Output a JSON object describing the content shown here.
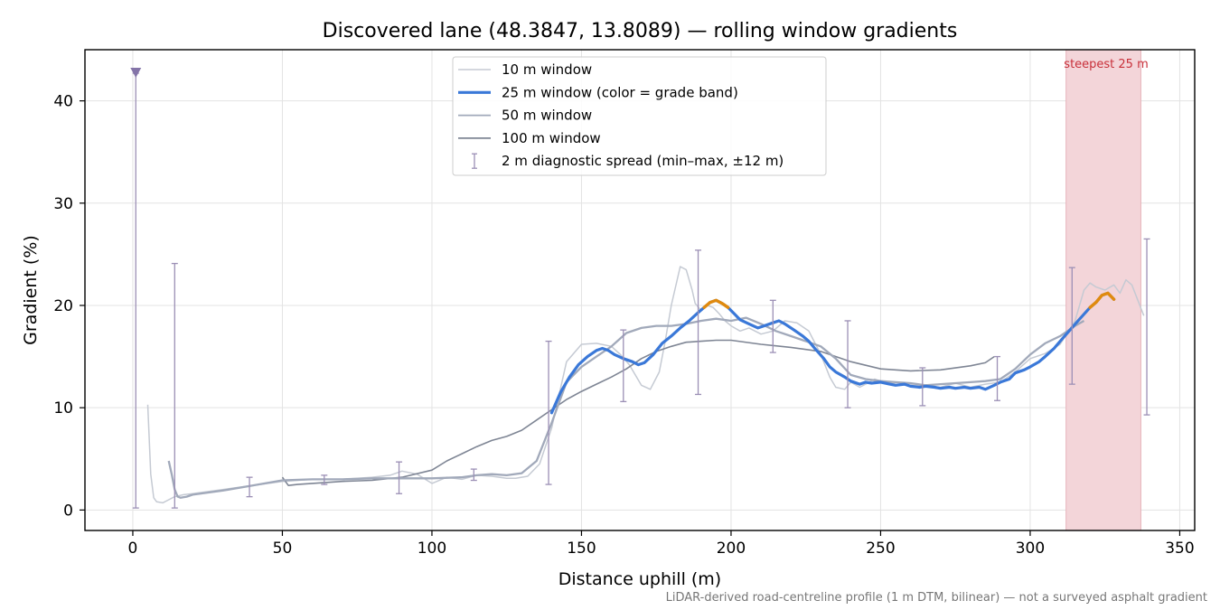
{
  "chart_data": {
    "type": "line",
    "title": "Discovered lane (48.3847, 13.8089) — rolling window gradients",
    "xlabel": "Distance uphill (m)",
    "ylabel": "Gradient (%)",
    "xlim": [
      -16,
      355
    ],
    "ylim": [
      -2,
      45
    ],
    "xticks": [
      0,
      50,
      100,
      150,
      200,
      250,
      300,
      350
    ],
    "yticks": [
      0,
      10,
      20,
      30,
      40
    ],
    "grid": true,
    "legend_placement": "upper center",
    "footnote": "LiDAR-derived road-centreline profile (1 m DTM, bilinear) — not a surveyed asphalt gradient",
    "colors": {
      "w10": "#c5cad3",
      "w25": "#3a78d8",
      "w25_steep": "#e08a0e",
      "w50": "#a1a9ba",
      "w100": "#7e8594",
      "spread": "#9b8fb5",
      "marker": "#8474a8",
      "highlight_fill": "#f3d5d9",
      "highlight_edge": "#e7b3ba"
    },
    "highlight": {
      "label": "steepest 25 m",
      "x_start": 312,
      "x_end": 337
    },
    "marker": {
      "x": 1,
      "y": 42.7
    },
    "series": [
      {
        "name": "10 m window",
        "x": [
          5,
          6,
          7,
          8,
          10,
          12,
          14,
          17,
          20,
          25,
          30,
          40,
          50,
          60,
          70,
          80,
          86,
          90,
          95,
          100,
          105,
          110,
          115,
          120,
          125,
          128,
          132,
          136,
          140,
          145,
          150,
          155,
          160,
          163,
          166,
          170,
          173,
          176,
          178,
          180,
          183,
          185,
          187,
          188,
          190,
          192,
          194,
          196,
          198,
          200,
          203,
          206,
          210,
          214,
          218,
          222,
          226,
          230,
          233,
          235,
          238,
          240,
          243,
          245,
          248,
          250,
          255,
          260,
          265,
          270,
          275,
          280,
          285,
          290,
          295,
          300,
          305,
          310,
          315,
          318,
          320,
          322,
          325,
          328,
          330,
          332,
          334,
          336,
          338
        ],
        "y": [
          10.3,
          3.5,
          1.2,
          0.8,
          0.7,
          1.0,
          1.3,
          1.5,
          1.6,
          1.8,
          2.0,
          2.4,
          2.8,
          3.0,
          3.0,
          3.2,
          3.4,
          3.8,
          3.5,
          2.6,
          3.2,
          3.0,
          3.4,
          3.3,
          3.1,
          3.1,
          3.3,
          4.5,
          8.0,
          14.5,
          16.2,
          16.3,
          16.0,
          15.2,
          14.2,
          12.2,
          11.8,
          13.5,
          16.5,
          20.0,
          23.8,
          23.5,
          21.5,
          20.2,
          19.5,
          20.0,
          19.8,
          19.2,
          18.5,
          18.0,
          17.5,
          17.8,
          17.2,
          17.5,
          18.5,
          18.3,
          17.5,
          15.2,
          13.0,
          12.0,
          11.8,
          12.5,
          12.0,
          12.3,
          12.8,
          12.6,
          12.3,
          12.2,
          12.1,
          12.0,
          12.4,
          12.0,
          12.3,
          12.5,
          13.5,
          14.8,
          15.3,
          16.2,
          18.5,
          21.5,
          22.2,
          21.8,
          21.5,
          22.0,
          21.2,
          22.5,
          22.0,
          20.5,
          19.0
        ]
      },
      {
        "name": "25 m window (color = grade band)",
        "x": [
          140,
          143,
          146,
          149,
          152,
          155,
          157,
          159,
          161,
          164,
          167,
          169,
          171,
          174,
          177,
          180,
          183,
          186,
          189,
          191,
          193,
          195,
          197,
          199,
          201,
          203,
          206,
          209,
          211,
          214,
          216,
          218,
          221,
          224,
          226,
          228,
          231,
          233,
          235,
          238,
          240,
          243,
          245,
          247,
          250,
          253,
          255,
          258,
          260,
          263,
          265,
          268,
          270,
          273,
          275,
          278,
          280,
          283,
          285,
          288,
          290,
          293,
          295,
          298,
          300,
          303,
          305,
          308,
          310,
          313,
          316,
          320,
          322,
          324,
          326,
          328
        ],
        "y": [
          9.5,
          11.5,
          13.0,
          14.2,
          15.0,
          15.6,
          15.8,
          15.6,
          15.2,
          14.8,
          14.5,
          14.2,
          14.4,
          15.2,
          16.3,
          17.0,
          17.8,
          18.5,
          19.3,
          19.8,
          20.3,
          20.5,
          20.2,
          19.8,
          19.2,
          18.6,
          18.2,
          17.8,
          18.0,
          18.3,
          18.5,
          18.2,
          17.6,
          17.0,
          16.5,
          15.8,
          14.8,
          14.0,
          13.5,
          13.0,
          12.6,
          12.3,
          12.5,
          12.4,
          12.5,
          12.3,
          12.2,
          12.3,
          12.1,
          12.0,
          12.1,
          12.0,
          11.9,
          12.0,
          11.9,
          12.0,
          11.9,
          12.0,
          11.8,
          12.2,
          12.5,
          12.8,
          13.4,
          13.7,
          14.0,
          14.5,
          15.0,
          15.8,
          16.5,
          17.5,
          18.5,
          19.8,
          20.3,
          21.0,
          21.2,
          20.6
        ],
        "steep_from_index": [
          19,
          71
        ],
        "steep_to_index": [
          23,
          75
        ]
      },
      {
        "name": "50 m window",
        "x": [
          12,
          13,
          14,
          15,
          16,
          18,
          20,
          25,
          30,
          40,
          50,
          60,
          70,
          80,
          90,
          100,
          110,
          115,
          120,
          125,
          130,
          135,
          140,
          145,
          150,
          155,
          160,
          165,
          170,
          175,
          180,
          185,
          190,
          195,
          200,
          205,
          210,
          215,
          220,
          225,
          230,
          235,
          240,
          245,
          250,
          255,
          260,
          265,
          270,
          275,
          280,
          285,
          290,
          295,
          300,
          305,
          310,
          315,
          318
        ],
        "y": [
          4.8,
          3.5,
          2.0,
          1.3,
          1.2,
          1.3,
          1.5,
          1.7,
          1.9,
          2.4,
          2.9,
          3.0,
          3.0,
          3.1,
          3.1,
          3.1,
          3.2,
          3.4,
          3.5,
          3.4,
          3.6,
          4.8,
          8.5,
          12.5,
          14.0,
          15.0,
          16.0,
          17.3,
          17.8,
          18.0,
          18.0,
          18.2,
          18.5,
          18.7,
          18.5,
          18.8,
          18.2,
          17.5,
          17.0,
          16.5,
          16.0,
          14.8,
          13.2,
          12.8,
          12.6,
          12.5,
          12.4,
          12.2,
          12.3,
          12.4,
          12.5,
          12.6,
          12.8,
          13.8,
          15.2,
          16.3,
          17.0,
          18.0,
          18.5
        ]
      },
      {
        "name": "100 m window",
        "x": [
          50,
          52,
          55,
          60,
          70,
          80,
          90,
          100,
          105,
          110,
          115,
          120,
          125,
          130,
          135,
          140,
          145,
          150,
          155,
          160,
          165,
          170,
          175,
          180,
          185,
          190,
          195,
          200,
          210,
          220,
          230,
          240,
          250,
          260,
          270,
          280,
          285,
          288
        ],
        "y": [
          3.2,
          2.4,
          2.5,
          2.6,
          2.8,
          2.9,
          3.2,
          3.9,
          4.8,
          5.5,
          6.2,
          6.8,
          7.2,
          7.8,
          8.8,
          9.8,
          10.8,
          11.6,
          12.3,
          13.0,
          13.8,
          14.8,
          15.5,
          16.0,
          16.4,
          16.5,
          16.6,
          16.6,
          16.2,
          15.9,
          15.5,
          14.5,
          13.8,
          13.6,
          13.7,
          14.1,
          14.4,
          15.0
        ]
      },
      {
        "name": "2 m diagnostic spread (min–max, ±12 m)",
        "points": [
          {
            "x": 1,
            "min": 0.2,
            "max": 42.7
          },
          {
            "x": 14,
            "min": 0.2,
            "max": 24.1
          },
          {
            "x": 39,
            "min": 1.3,
            "max": 3.2
          },
          {
            "x": 64,
            "min": 2.5,
            "max": 3.4
          },
          {
            "x": 89,
            "min": 1.6,
            "max": 4.7
          },
          {
            "x": 114,
            "min": 2.9,
            "max": 4.0
          },
          {
            "x": 139,
            "min": 2.5,
            "max": 16.5
          },
          {
            "x": 164,
            "min": 10.6,
            "max": 17.6
          },
          {
            "x": 189,
            "min": 11.3,
            "max": 25.4
          },
          {
            "x": 214,
            "min": 15.4,
            "max": 20.5
          },
          {
            "x": 239,
            "min": 10.0,
            "max": 18.5
          },
          {
            "x": 264,
            "min": 10.2,
            "max": 13.9
          },
          {
            "x": 289,
            "min": 10.7,
            "max": 15.0
          },
          {
            "x": 314,
            "min": 12.3,
            "max": 23.7
          },
          {
            "x": 339,
            "min": 9.3,
            "max": 26.5
          }
        ]
      }
    ]
  }
}
